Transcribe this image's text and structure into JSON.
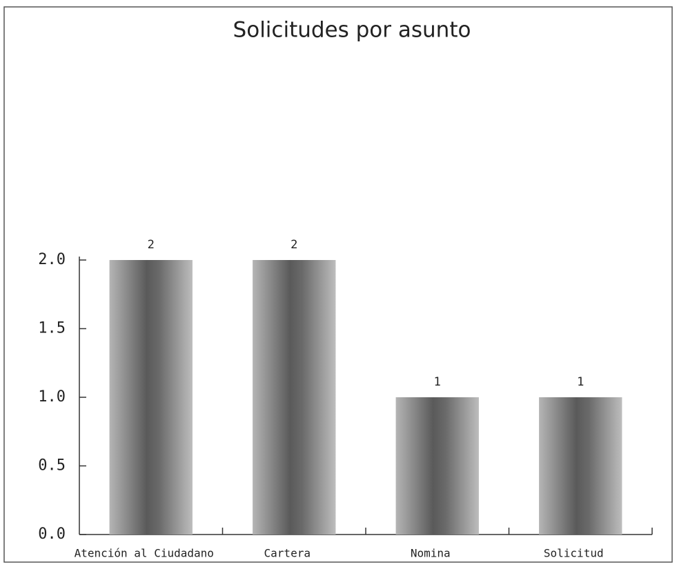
{
  "chart_data": {
    "type": "bar",
    "title": "Solicitudes por asunto",
    "categories": [
      "Atención al Ciudadano",
      "Cartera",
      "Nomina",
      "Solicitud"
    ],
    "values": [
      2,
      2,
      1,
      1
    ],
    "color": "#6e6e6e",
    "ylim": [
      0,
      2
    ],
    "yticks": [
      {
        "value": 0,
        "label": "0.0"
      },
      {
        "value": 0.5,
        "label": "0.5"
      },
      {
        "value": 1,
        "label": "1.0"
      },
      {
        "value": 1.5,
        "label": "1.5"
      },
      {
        "value": 2,
        "label": "2.0"
      }
    ]
  }
}
